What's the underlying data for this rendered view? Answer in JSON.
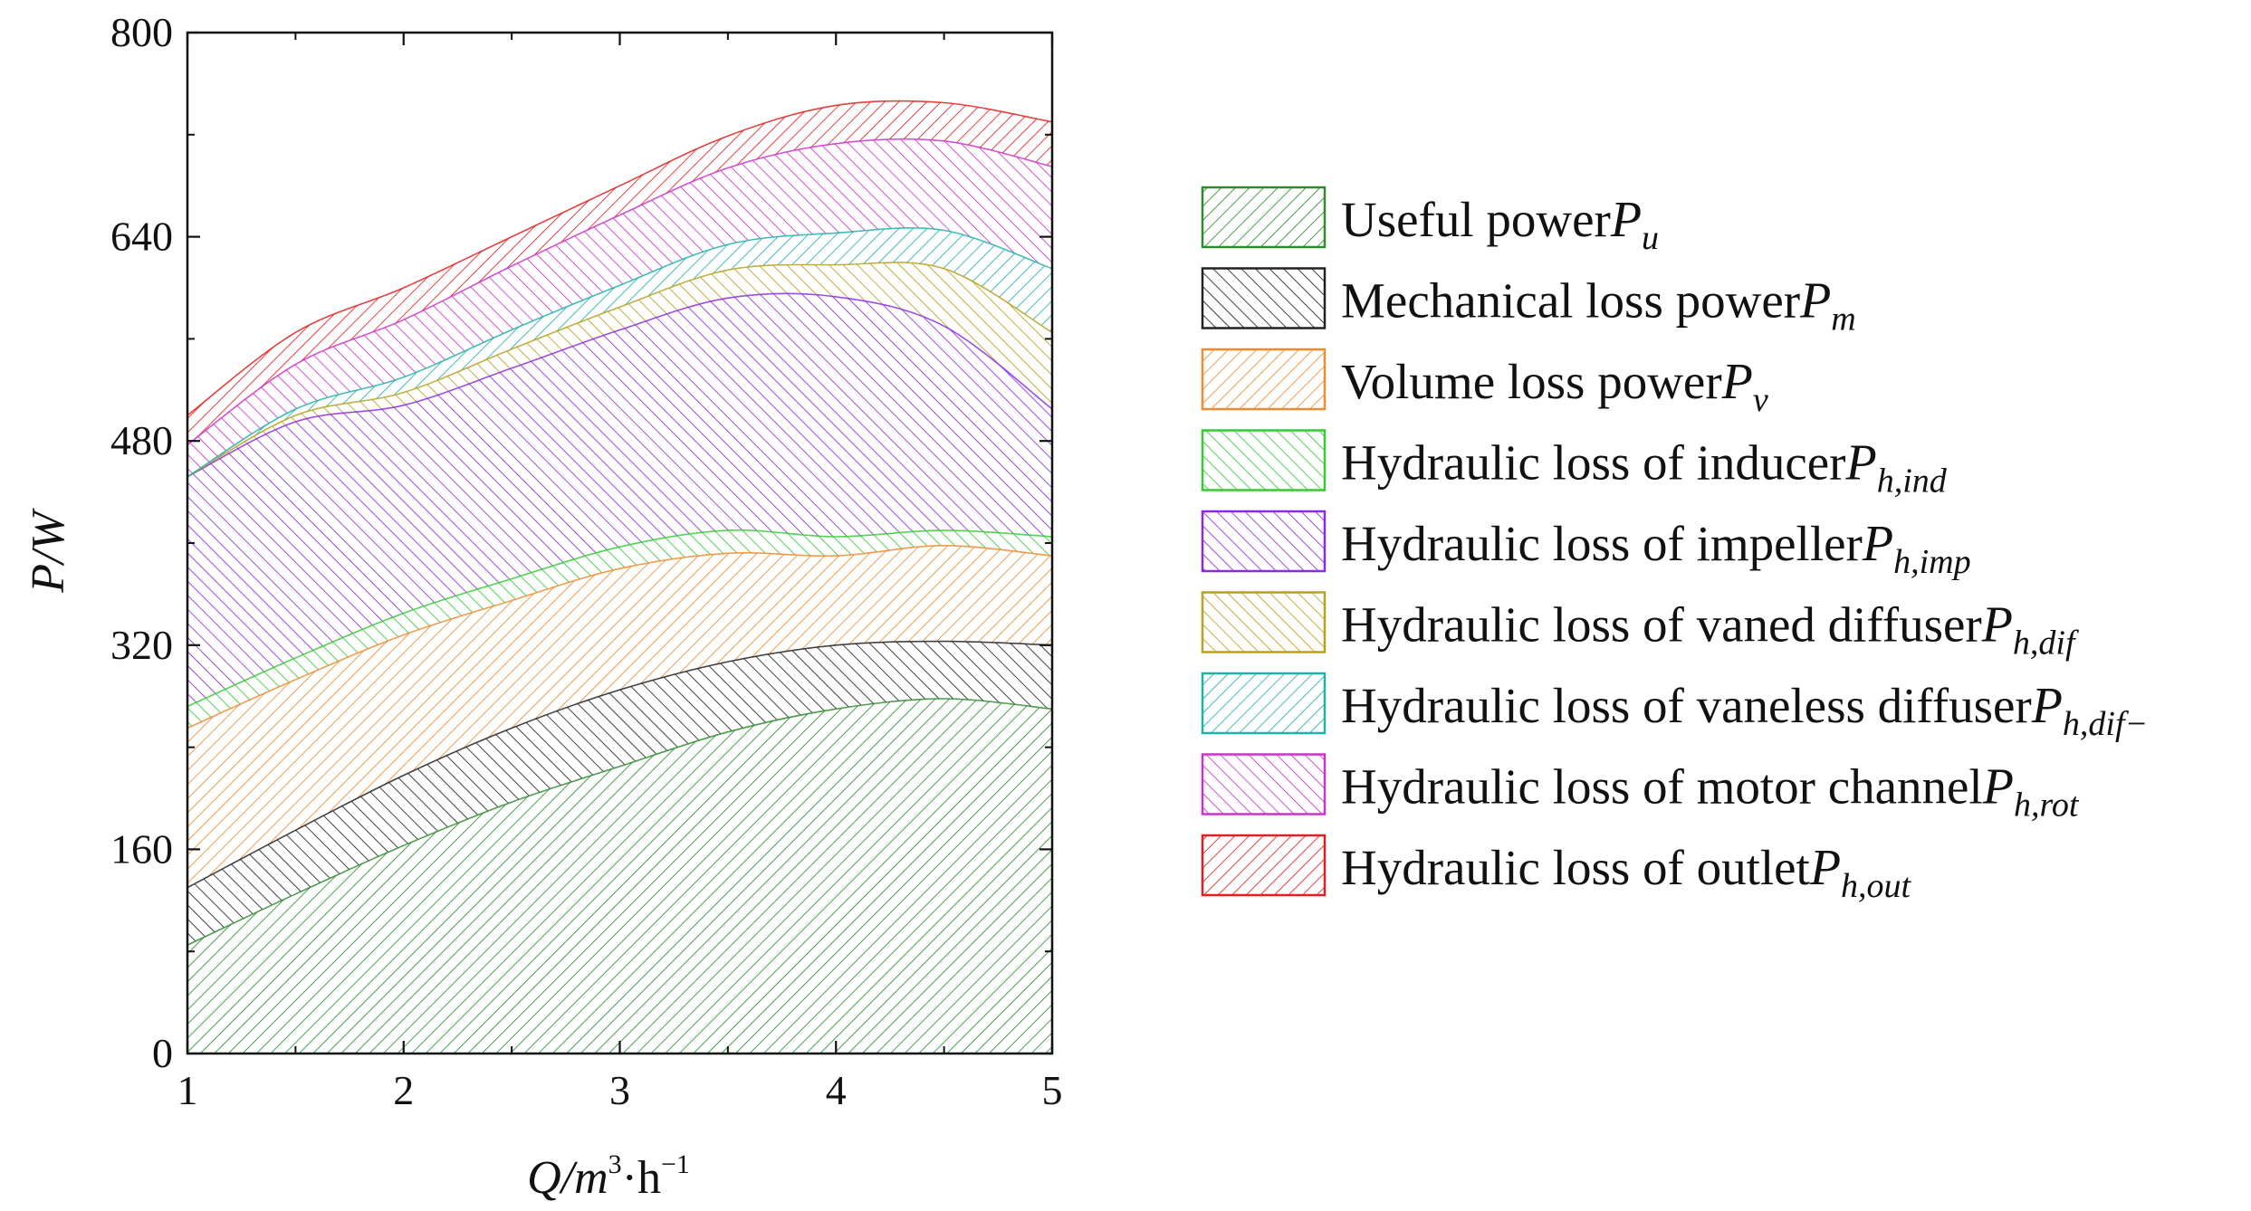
{
  "chart_data": {
    "type": "area",
    "stacked": true,
    "title": "",
    "xlabel": {
      "main": "Q/m",
      "sup1": "3",
      "mid": "·h",
      "sup2": "−1"
    },
    "ylabel": "P/W",
    "xlim": [
      1,
      5
    ],
    "ylim": [
      0,
      800
    ],
    "xticks": [
      1,
      2,
      3,
      4,
      5
    ],
    "yticks": [
      0,
      160,
      320,
      480,
      640,
      800
    ],
    "x": [
      1,
      1.5,
      2,
      2.5,
      3,
      3.5,
      4,
      4.5,
      5
    ],
    "legend_position": "right",
    "series": [
      {
        "name": "Useful power",
        "symbol": "P",
        "subscript": "u",
        "color": "#2e8b2e",
        "hatch": "back",
        "values": [
          85,
          125,
          163,
          197,
          225,
          252,
          270,
          278,
          270
        ]
      },
      {
        "name": "Mechanical loss power",
        "symbol": "P",
        "subscript": "m",
        "color": "#222222",
        "hatch": "fwd",
        "values": [
          45,
          50,
          55,
          58,
          60,
          55,
          50,
          45,
          50
        ]
      },
      {
        "name": "Volume loss power",
        "symbol": "P",
        "subscript": "v",
        "color": "#f08a30",
        "hatch": "back",
        "values": [
          125,
          118,
          110,
          100,
          95,
          85,
          70,
          75,
          70
        ]
      },
      {
        "name": "Hydraulic loss of inducer",
        "symbol": "P",
        "subscript": "h,ind",
        "color": "#33cc33",
        "hatch": "fwd",
        "values": [
          17,
          17,
          17,
          17,
          17,
          18,
          15,
          12,
          15
        ]
      },
      {
        "name": "Hydraulic loss of impeller",
        "symbol": "P",
        "subscript": "h,imp",
        "color": "#8a2be2",
        "hatch": "fwd",
        "values": [
          180,
          185,
          163,
          165,
          170,
          182,
          188,
          160,
          100
        ]
      },
      {
        "name": "Hydraulic loss of vaned diffuser",
        "symbol": "P",
        "subscript": "h,dif",
        "color": "#b8a020",
        "hatch": "fwd",
        "values": [
          0,
          5,
          10,
          15,
          18,
          22,
          25,
          45,
          60
        ]
      },
      {
        "name": "Hydraulic loss of vaneless diffuser",
        "symbol": "P",
        "subscript": "h,dif−",
        "color": "#20b2aa",
        "hatch": "back",
        "values": [
          0,
          5,
          12,
          15,
          17,
          20,
          25,
          30,
          50
        ]
      },
      {
        "name": "Hydraulic loss of motor channel",
        "symbol": "P",
        "subscript": "h,rot",
        "color": "#cc33cc",
        "hatch": "fwd",
        "values": [
          25,
          35,
          45,
          50,
          55,
          60,
          70,
          70,
          80
        ]
      },
      {
        "name": "Hydraulic loss of outlet",
        "symbol": "P",
        "subscript": "h,out",
        "color": "#e02020",
        "hatch": "back",
        "values": [
          23,
          25,
          25,
          23,
          23,
          25,
          30,
          30,
          35
        ]
      }
    ]
  }
}
